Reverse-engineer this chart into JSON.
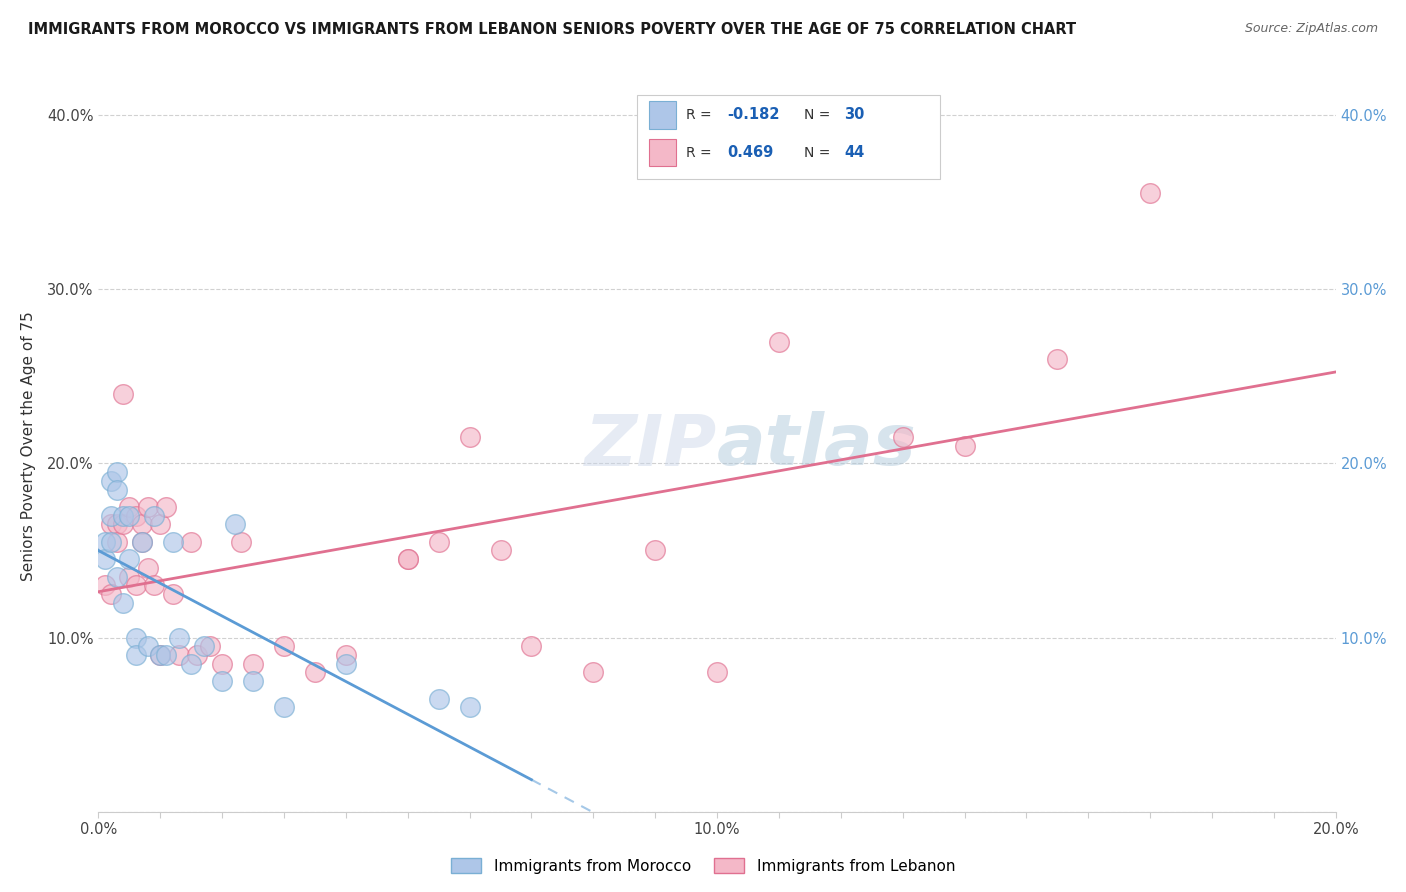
{
  "title": "IMMIGRANTS FROM MOROCCO VS IMMIGRANTS FROM LEBANON SENIORS POVERTY OVER THE AGE OF 75 CORRELATION CHART",
  "source": "Source: ZipAtlas.com",
  "ylabel": "Seniors Poverty Over the Age of 75",
  "xlim": [
    0.0,
    0.2
  ],
  "ylim": [
    0.0,
    0.42
  ],
  "morocco_color": "#aec6e8",
  "morocco_edge": "#7aafd4",
  "lebanon_color": "#f4b8c8",
  "lebanon_edge": "#e07090",
  "morocco_line_color": "#5b9bd5",
  "lebanon_line_color": "#e07090",
  "morocco_R": -0.182,
  "morocco_N": 30,
  "lebanon_R": 0.469,
  "lebanon_N": 44,
  "morocco_points_x": [
    0.001,
    0.001,
    0.002,
    0.002,
    0.002,
    0.003,
    0.003,
    0.003,
    0.004,
    0.004,
    0.005,
    0.005,
    0.006,
    0.006,
    0.007,
    0.008,
    0.009,
    0.01,
    0.011,
    0.012,
    0.013,
    0.015,
    0.017,
    0.02,
    0.022,
    0.025,
    0.03,
    0.04,
    0.055,
    0.06
  ],
  "morocco_points_y": [
    0.155,
    0.145,
    0.19,
    0.17,
    0.155,
    0.195,
    0.185,
    0.135,
    0.17,
    0.12,
    0.17,
    0.145,
    0.1,
    0.09,
    0.155,
    0.095,
    0.17,
    0.09,
    0.09,
    0.155,
    0.1,
    0.085,
    0.095,
    0.075,
    0.165,
    0.075,
    0.06,
    0.085,
    0.065,
    0.06
  ],
  "lebanon_points_x": [
    0.001,
    0.002,
    0.002,
    0.003,
    0.003,
    0.004,
    0.004,
    0.005,
    0.005,
    0.006,
    0.006,
    0.007,
    0.007,
    0.008,
    0.008,
    0.009,
    0.01,
    0.01,
    0.011,
    0.012,
    0.013,
    0.015,
    0.016,
    0.018,
    0.02,
    0.023,
    0.025,
    0.03,
    0.035,
    0.04,
    0.05,
    0.055,
    0.06,
    0.065,
    0.07,
    0.08,
    0.09,
    0.1,
    0.11,
    0.13,
    0.14,
    0.155,
    0.17,
    0.05
  ],
  "lebanon_points_y": [
    0.13,
    0.165,
    0.125,
    0.165,
    0.155,
    0.24,
    0.165,
    0.175,
    0.135,
    0.17,
    0.13,
    0.165,
    0.155,
    0.175,
    0.14,
    0.13,
    0.165,
    0.09,
    0.175,
    0.125,
    0.09,
    0.155,
    0.09,
    0.095,
    0.085,
    0.155,
    0.085,
    0.095,
    0.08,
    0.09,
    0.145,
    0.155,
    0.215,
    0.15,
    0.095,
    0.08,
    0.15,
    0.08,
    0.27,
    0.215,
    0.21,
    0.26,
    0.355,
    0.145
  ]
}
